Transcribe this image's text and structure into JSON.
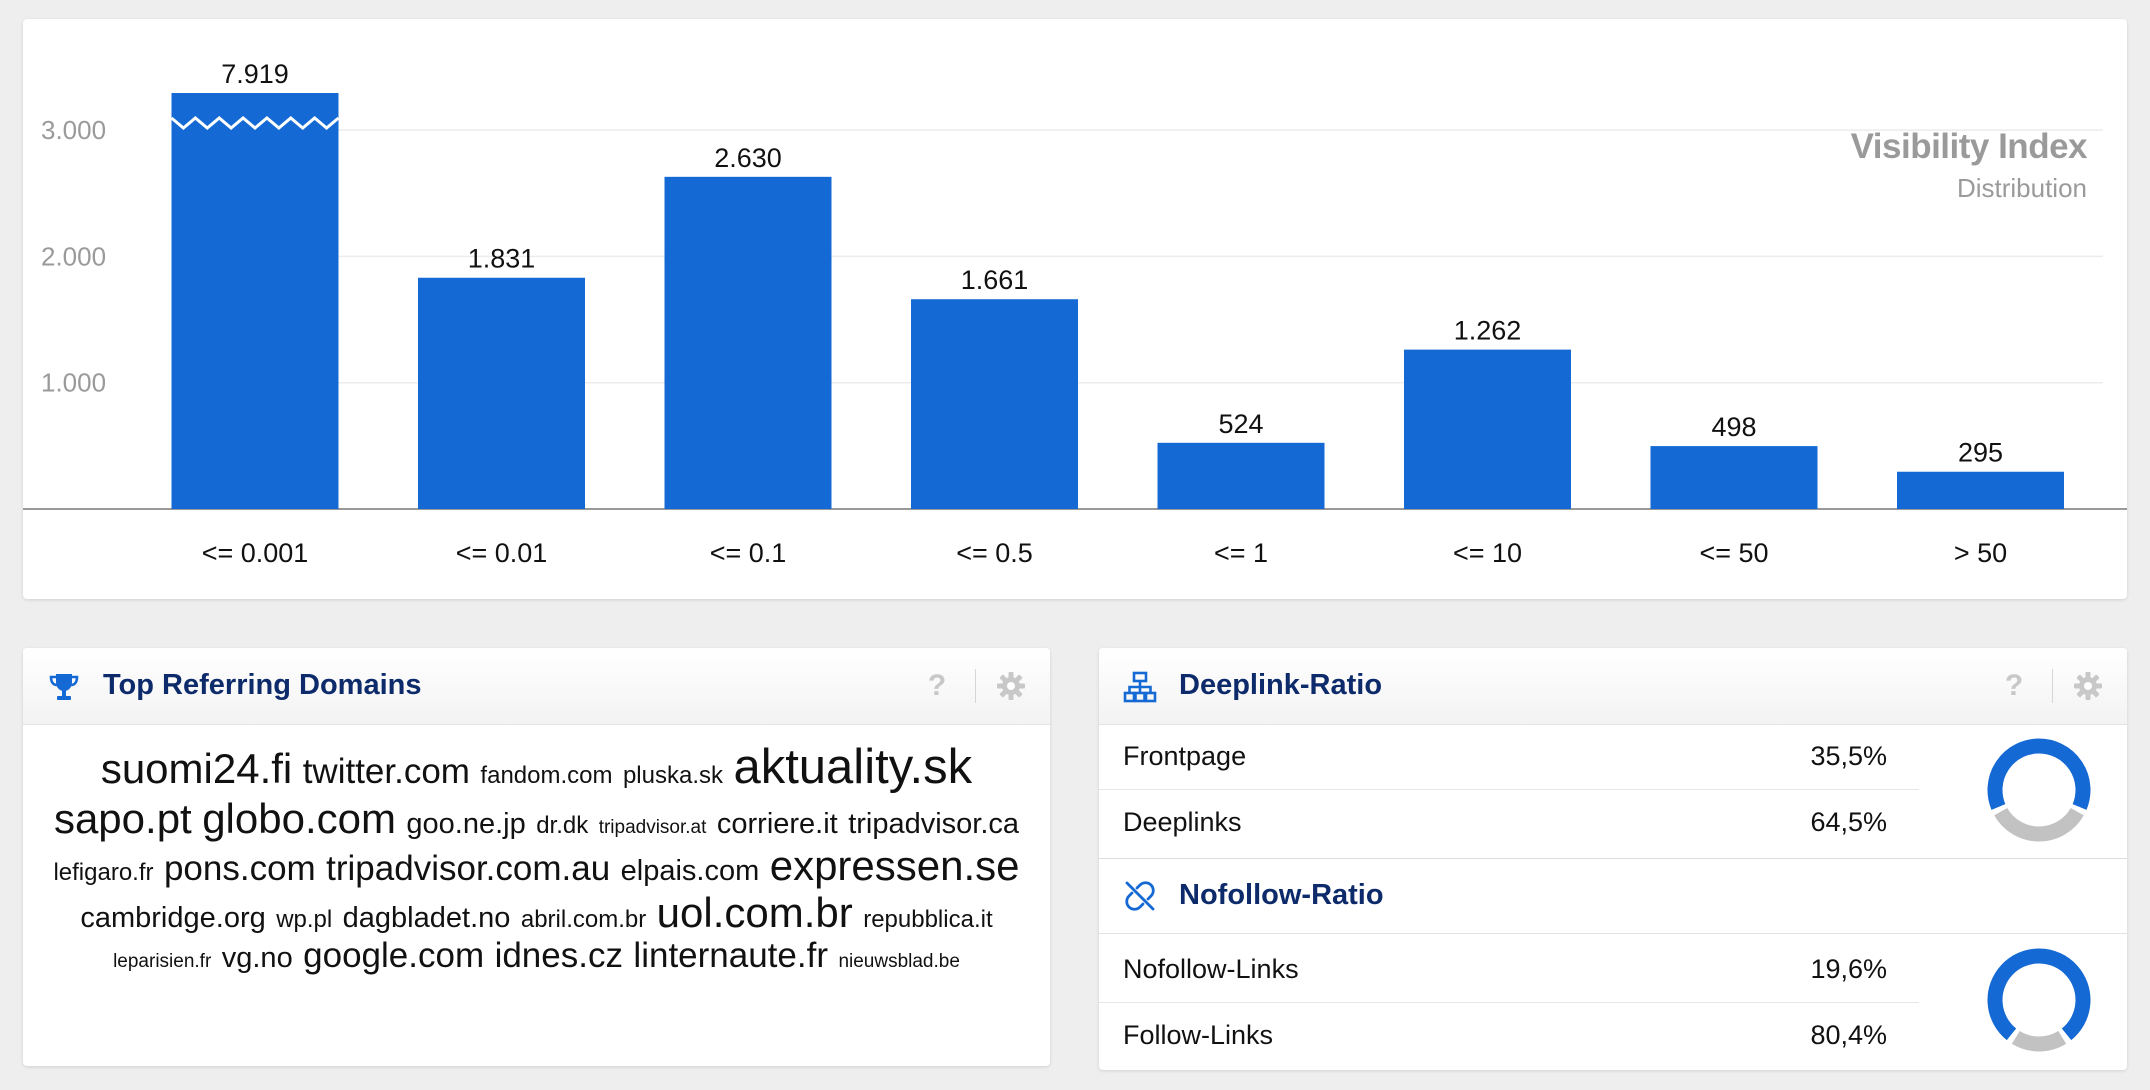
{
  "chart": {
    "title": "Visibility Index",
    "subtitle": "Distribution",
    "accent": "#1469d4"
  },
  "chart_data": {
    "type": "bar",
    "title": "Visibility Index",
    "subtitle": "Distribution",
    "categories": [
      "<= 0.001",
      "<= 0.01",
      "<= 0.1",
      "<= 0.5",
      "<= 1",
      "<= 10",
      "<= 50",
      "> 50"
    ],
    "values": [
      7919,
      1831,
      2630,
      1661,
      524,
      1262,
      498,
      295
    ],
    "value_labels": [
      "7.919",
      "1.831",
      "2.630",
      "1.661",
      "524",
      "1.262",
      "498",
      "295"
    ],
    "yticks": [
      1000,
      2000,
      3000
    ],
    "ytick_labels": [
      "1.000",
      "2.000",
      "3.000"
    ],
    "ylim": [
      0,
      3300
    ],
    "axis_break": true,
    "grid": true,
    "color": "#1469d4"
  },
  "domains": {
    "title": "Top Referring Domains",
    "help": "?",
    "icon": "trophy-icon",
    "cloud": [
      {
        "text": "suomi24.fi",
        "size": 4
      },
      {
        "text": "twitter.com",
        "size": 3
      },
      {
        "text": "fandom.com",
        "size": 1
      },
      {
        "text": "pluska.sk",
        "size": 1
      },
      {
        "text": "aktuality.sk",
        "size": 5
      },
      {
        "text": "sapo.pt",
        "size": 4
      },
      {
        "text": "globo.com",
        "size": 4
      },
      {
        "text": "goo.ne.jp",
        "size": 2
      },
      {
        "text": "dr.dk",
        "size": 1
      },
      {
        "text": "tripadvisor.at",
        "size": 0
      },
      {
        "text": "corriere.it",
        "size": 2
      },
      {
        "text": "tripadvisor.ca",
        "size": 2
      },
      {
        "text": "lefigaro.fr",
        "size": 1
      },
      {
        "text": "pons.com",
        "size": 3
      },
      {
        "text": "tripadvisor.com.au",
        "size": 3
      },
      {
        "text": "elpais.com",
        "size": 2
      },
      {
        "text": "expressen.se",
        "size": 4
      },
      {
        "text": "cambridge.org",
        "size": 2
      },
      {
        "text": "wp.pl",
        "size": 1
      },
      {
        "text": "dagbladet.no",
        "size": 2
      },
      {
        "text": "abril.com.br",
        "size": 1
      },
      {
        "text": "uol.com.br",
        "size": 4
      },
      {
        "text": "repubblica.it",
        "size": 1
      },
      {
        "text": "leparisien.fr",
        "size": 0
      },
      {
        "text": "vg.no",
        "size": 2
      },
      {
        "text": "google.com",
        "size": 3
      },
      {
        "text": "idnes.cz",
        "size": 3
      },
      {
        "text": "linternaute.fr",
        "size": 3
      },
      {
        "text": "nieuwsblad.be",
        "size": 0
      }
    ]
  },
  "deeplink": {
    "title": "Deeplink-Ratio",
    "help": "?",
    "icon": "sitemap-icon",
    "rows": [
      {
        "label": "Frontpage",
        "value": "35,5%",
        "fraction": 0.355
      },
      {
        "label": "Deeplinks",
        "value": "64,5%",
        "fraction": 0.645
      }
    ]
  },
  "nofollow": {
    "title": "Nofollow-Ratio",
    "icon": "broken-link-icon",
    "rows": [
      {
        "label": "Nofollow-Links",
        "value": "19,6%",
        "fraction": 0.196
      },
      {
        "label": "Follow-Links",
        "value": "80,4%",
        "fraction": 0.804
      }
    ]
  },
  "colors": {
    "blue": "#1469d4",
    "grey": "#c2c2c2",
    "navy": "#0d2a6b"
  }
}
